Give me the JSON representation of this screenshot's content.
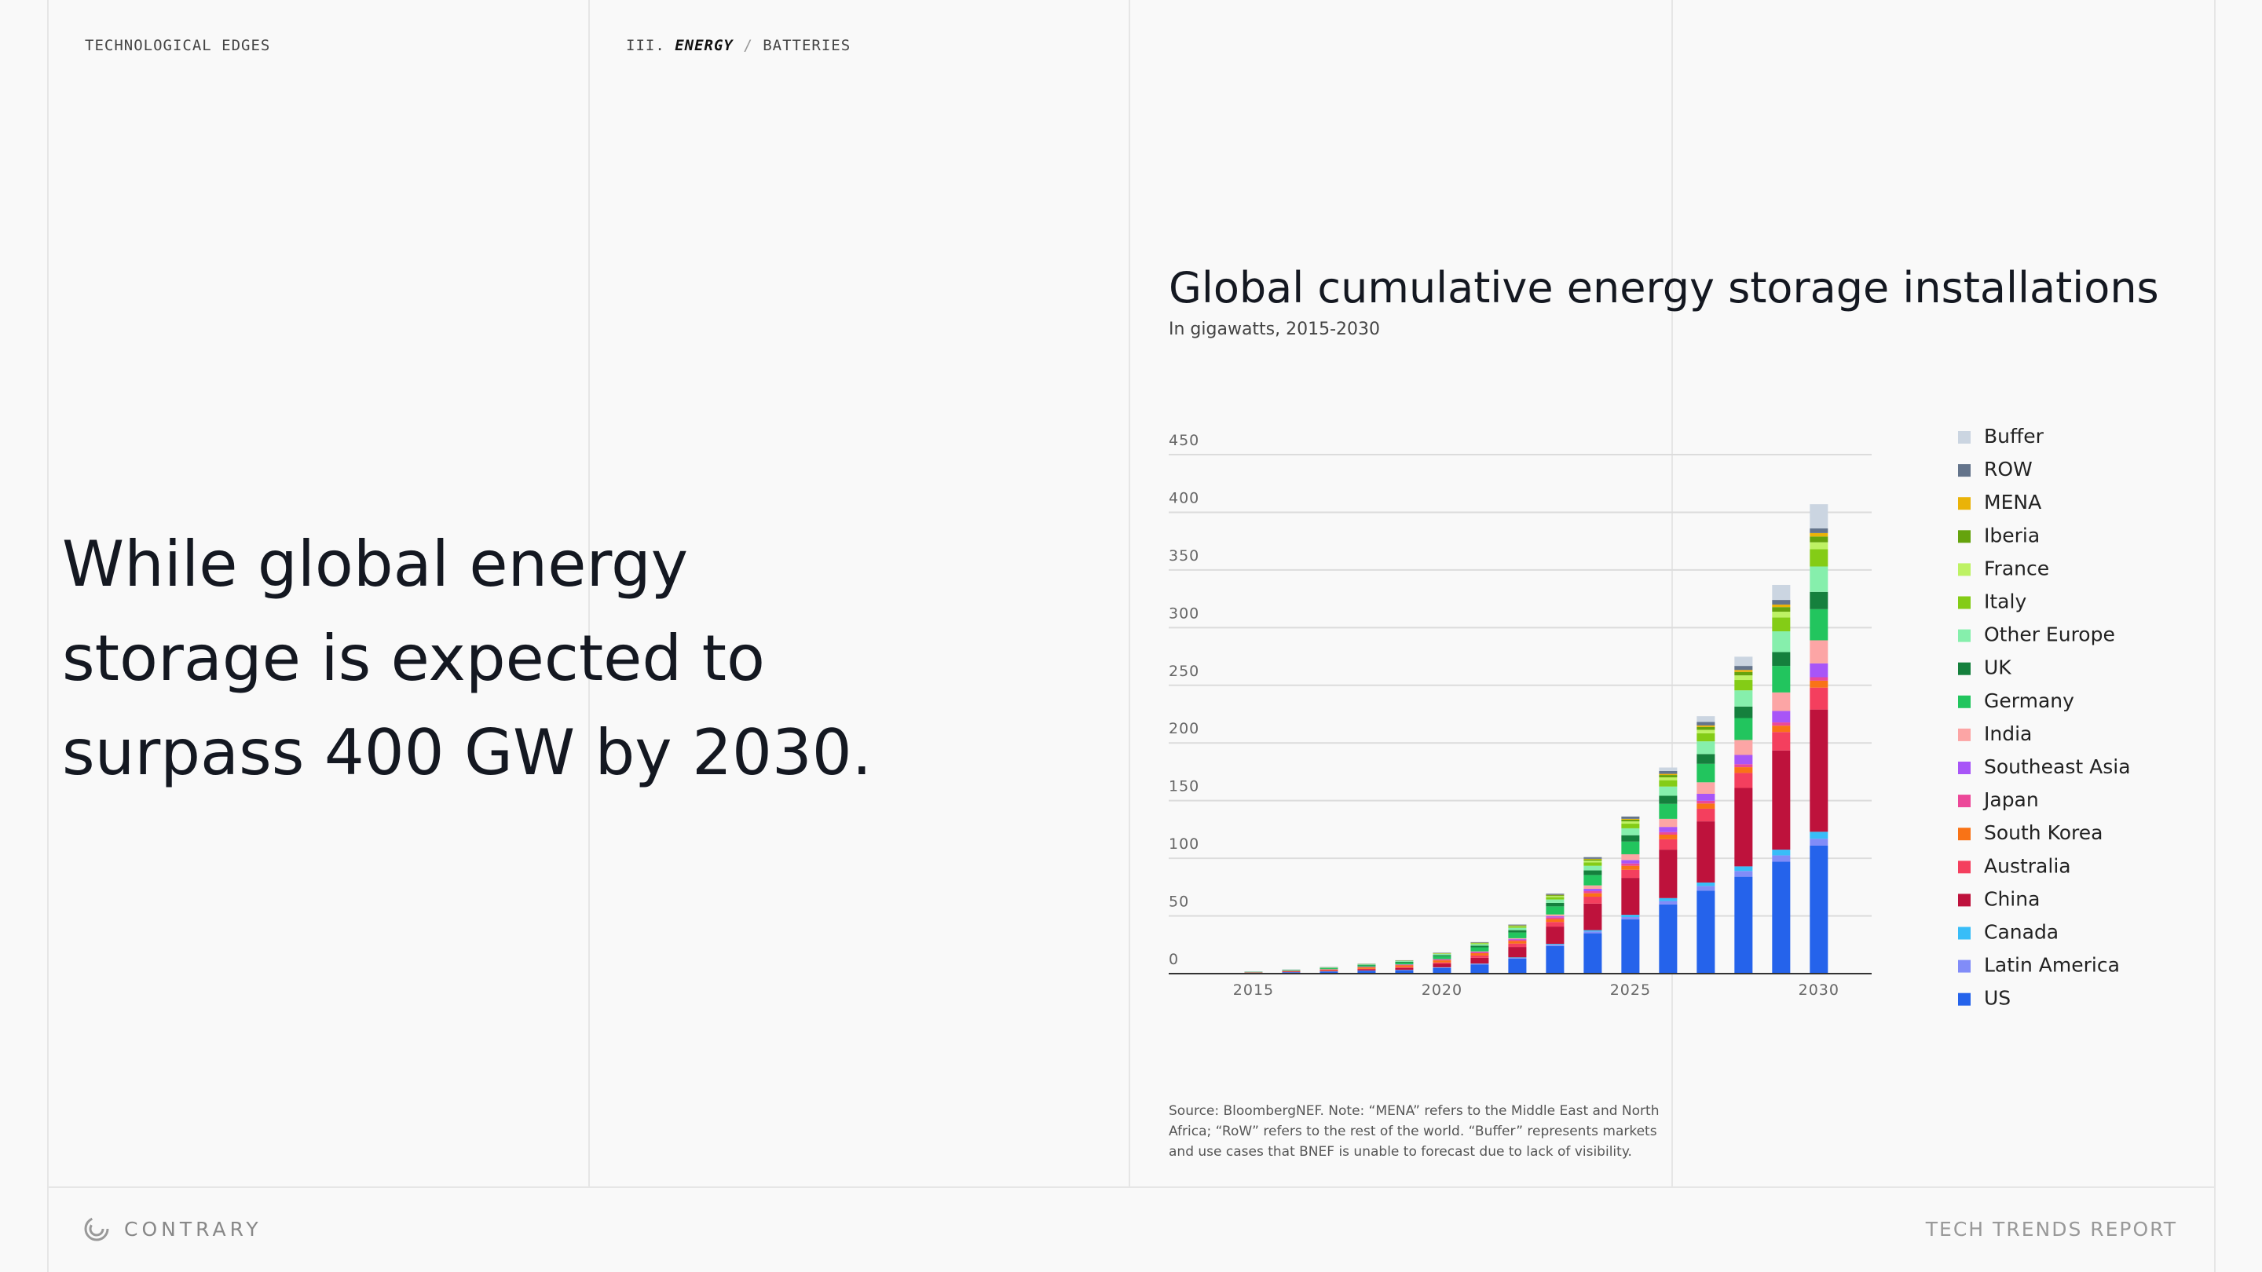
{
  "header": {
    "left": "TECHNOLOGICAL EDGES",
    "breadcrumb": [
      "III.",
      "ENERGY",
      "/",
      "BATTERIES"
    ]
  },
  "headline": [
    "While global energy",
    "storage is expected to",
    "surpass 400 GW by 2030."
  ],
  "chart_data": {
    "type": "stacked_bar",
    "title": "Global cumulative energy storage installations",
    "subtitle": "In gigawatts, 2015-2030",
    "x": [
      2015,
      2016,
      2017,
      2018,
      2019,
      2020,
      2021,
      2022,
      2023,
      2024,
      2025,
      2026,
      2027,
      2028,
      2029,
      2030
    ],
    "xlim": [
      2012.75,
      2031.4
    ],
    "xticks": [
      2015,
      2020,
      2025,
      2030
    ],
    "ylim": [
      0,
      450
    ],
    "yticks": [
      0,
      50,
      100,
      150,
      200,
      250,
      300,
      350,
      400,
      450
    ],
    "grid": true,
    "legend": "right",
    "series": [
      {
        "name": "US",
        "color": "#2563eb",
        "values": [
          0.6,
          1.2,
          1.8,
          2.5,
          3,
          5,
          8,
          13,
          24,
          35,
          47,
          60,
          72,
          84,
          97,
          111
        ]
      },
      {
        "name": "Latin America",
        "color": "#818cf8",
        "values": [
          0,
          0.1,
          0.1,
          0.1,
          0.2,
          0.3,
          0.4,
          0.6,
          1,
          1.5,
          2,
          3,
          4,
          5,
          5.5,
          6
        ]
      },
      {
        "name": "Canada",
        "color": "#38bdf8",
        "values": [
          0,
          0,
          0.1,
          0.1,
          0.1,
          0.2,
          0.3,
          0.5,
          0.8,
          1.2,
          2,
          2.5,
          3,
          4,
          5,
          6
        ]
      },
      {
        "name": "China",
        "color": "#be123c",
        "values": [
          0.2,
          0.4,
          0.6,
          1,
          1.5,
          3,
          5,
          9,
          15,
          23,
          32,
          42,
          53,
          68,
          86,
          106
        ]
      },
      {
        "name": "Australia",
        "color": "#f43f5e",
        "values": [
          0.1,
          0.2,
          0.3,
          0.5,
          0.8,
          1.2,
          2,
          3,
          4,
          6,
          7,
          9,
          11,
          13,
          16,
          19
        ]
      },
      {
        "name": "South Korea",
        "color": "#f97316",
        "values": [
          0.1,
          0.3,
          0.6,
          1.2,
          1.6,
          1.8,
          2,
          2.2,
          2.5,
          3,
          3.5,
          4,
          4.5,
          5,
          5.5,
          6
        ]
      },
      {
        "name": "Japan",
        "color": "#ec4899",
        "values": [
          0.2,
          0.3,
          0.4,
          0.5,
          0.6,
          0.8,
          1,
          1.2,
          1.5,
          1.8,
          2,
          2.2,
          2.4,
          2.6,
          2.8,
          3
        ]
      },
      {
        "name": "Southeast Asia",
        "color": "#a855f7",
        "values": [
          0,
          0,
          0,
          0.1,
          0.1,
          0.2,
          0.3,
          0.6,
          1,
          2,
          3,
          4.5,
          6,
          8,
          10,
          12
        ]
      },
      {
        "name": "India",
        "color": "#fca5a5",
        "values": [
          0,
          0,
          0,
          0,
          0.1,
          0.1,
          0.3,
          0.6,
          1.5,
          3,
          5,
          7,
          10,
          13,
          16,
          20
        ]
      },
      {
        "name": "Germany",
        "color": "#22c55e",
        "values": [
          0.3,
          0.5,
          0.8,
          1.2,
          1.6,
          2.5,
          3.5,
          5,
          7,
          9,
          11,
          13,
          16,
          19,
          23,
          27
        ]
      },
      {
        "name": "UK",
        "color": "#15803d",
        "values": [
          0.1,
          0.2,
          0.3,
          0.5,
          0.7,
          1,
          1.5,
          2,
          3,
          4,
          5.5,
          7,
          8.5,
          10,
          12,
          15
        ]
      },
      {
        "name": "Other Europe",
        "color": "#86efac",
        "values": [
          0.1,
          0.2,
          0.3,
          0.4,
          0.6,
          0.9,
          1.3,
          2,
          3,
          4,
          6,
          8,
          11,
          14,
          18,
          22
        ]
      },
      {
        "name": "Italy",
        "color": "#84cc16",
        "values": [
          0,
          0,
          0.1,
          0.1,
          0.2,
          0.3,
          0.6,
          1,
          2,
          3,
          4,
          5.5,
          7,
          9,
          12,
          15
        ]
      },
      {
        "name": "France",
        "color": "#bef264",
        "values": [
          0,
          0,
          0.1,
          0.1,
          0.1,
          0.2,
          0.3,
          0.5,
          1,
          1.5,
          2,
          2.5,
          3,
          4,
          5,
          6
        ]
      },
      {
        "name": "Iberia",
        "color": "#65a30d",
        "values": [
          0,
          0,
          0,
          0.1,
          0.1,
          0.1,
          0.2,
          0.4,
          0.7,
          1,
          1.5,
          2,
          2.5,
          3,
          4,
          5
        ]
      },
      {
        "name": "MENA",
        "color": "#eab308",
        "values": [
          0,
          0,
          0,
          0,
          0,
          0.1,
          0.1,
          0.2,
          0.3,
          0.5,
          0.7,
          1,
          1.3,
          1.7,
          2.2,
          3
        ]
      },
      {
        "name": "ROW",
        "color": "#64748b",
        "values": [
          0.1,
          0.1,
          0.2,
          0.2,
          0.3,
          0.4,
          0.5,
          0.7,
          1,
          1.5,
          2,
          2.5,
          3,
          3.5,
          4,
          4
        ]
      },
      {
        "name": "Buffer",
        "color": "#cbd5e1",
        "values": [
          0,
          0,
          0,
          0,
          0,
          0,
          0,
          0,
          0,
          0,
          0,
          3,
          5,
          8,
          13,
          21
        ]
      }
    ],
    "source": "Source: BloombergNEF. Note: “MENA” refers to the Middle East and North Africa; “RoW” refers to the rest of the world. “Buffer” represents markets and use cases that BNEF is unable to forecast due to lack of visibility."
  },
  "footer": {
    "brand": "CONTRARY",
    "report": "TECH TRENDS REPORT"
  }
}
